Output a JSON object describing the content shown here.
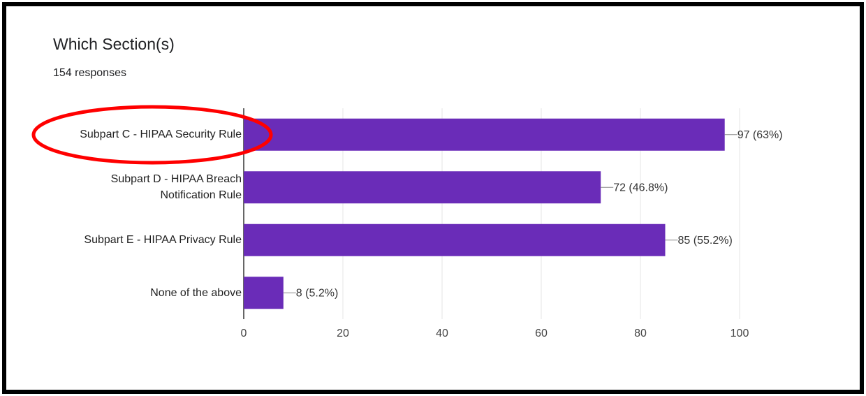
{
  "chart_data": {
    "type": "bar",
    "orientation": "horizontal",
    "title": "Which Section(s)",
    "subtitle": "154 responses",
    "categories": [
      "Subpart C - HIPAA Security Rule",
      "Subpart D - HIPAA Breach Notification Rule",
      "Subpart E - HIPAA Privacy Rule",
      "None of the above"
    ],
    "values": [
      97,
      72,
      85,
      8
    ],
    "value_labels": [
      "97 (63%)",
      "72 (46.8%)",
      "85 (55.2%)",
      "8 (5.2%)"
    ],
    "color": "#6a2cb8",
    "xlim": [
      0,
      100
    ],
    "xticks": [
      0,
      20,
      40,
      60,
      80,
      100
    ],
    "grid": true
  }
}
